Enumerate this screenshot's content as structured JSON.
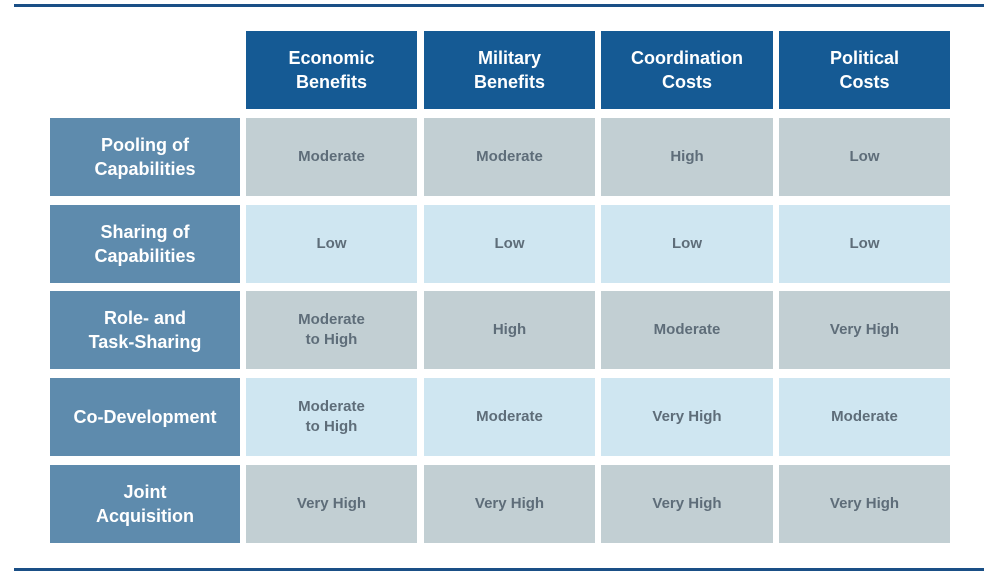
{
  "table": {
    "columns": [
      "Economic\nBenefits",
      "Military\nBenefits",
      "Coordination\nCosts",
      "Political\nCosts"
    ],
    "rows": [
      {
        "label": "Pooling of\nCapabilities",
        "cells": [
          "Moderate",
          "Moderate",
          "High",
          "Low"
        ]
      },
      {
        "label": "Sharing of\nCapabilities",
        "cells": [
          "Low",
          "Low",
          "Low",
          "Low"
        ]
      },
      {
        "label": "Role- and\nTask-Sharing",
        "cells": [
          "Moderate\nto High",
          "High",
          "Moderate",
          "Very High"
        ]
      },
      {
        "label": "Co-Development",
        "cells": [
          "Moderate\nto High",
          "Moderate",
          "Very High",
          "Moderate"
        ]
      },
      {
        "label": "Joint\nAcquisition",
        "cells": [
          "Very High",
          "Very High",
          "Very High",
          "Very High"
        ]
      }
    ]
  },
  "colors": {
    "rule": "#1a4f86",
    "column_header": "#155a94",
    "row_header": "#5e8bad",
    "cell_gray": "#c2cfd3",
    "cell_light": "#cfe6f1",
    "cell_text": "#5e6d79"
  }
}
